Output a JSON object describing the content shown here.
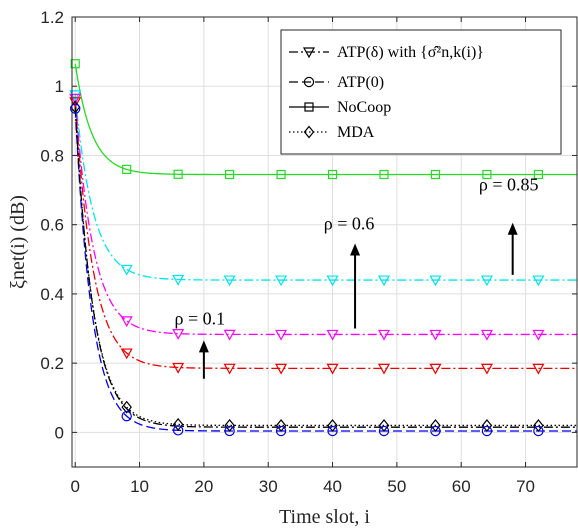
{
  "chart_data": {
    "type": "line",
    "xlabel": "Time slot, i",
    "ylabel": "ξnet(i) (dB)",
    "xlim": [
      -0.5,
      78
    ],
    "ylim": [
      -0.1,
      1.2
    ],
    "xticks": [
      "0",
      "10",
      "20",
      "30",
      "40",
      "50",
      "60",
      "70"
    ],
    "yticks": [
      "0",
      "0.2",
      "0.4",
      "0.6",
      "0.8",
      "1",
      "1.2"
    ],
    "grid": true,
    "legend": {
      "placement": "top-right",
      "entries": [
        {
          "label": "ATP(δ) with {σ̂²n,k(i)}",
          "style": "dashdot",
          "marker": "triangle-down"
        },
        {
          "label": "ATP(0)",
          "style": "dashed",
          "marker": "circle"
        },
        {
          "label": "NoCoop",
          "style": "solid",
          "marker": "square"
        },
        {
          "label": "MDA",
          "style": "dotted",
          "marker": "diamond"
        }
      ]
    },
    "annotations": [
      {
        "text": "ρ = 0.1",
        "arrow_x": 20,
        "arrow_from": 0.155,
        "arrow_to": 0.26
      },
      {
        "text": "ρ = 0.6",
        "arrow_x": 43.5,
        "arrow_from": 0.3,
        "arrow_to": 0.54
      },
      {
        "text": "ρ = 0.85",
        "arrow_x": 68,
        "arrow_from": 0.455,
        "arrow_to": 0.6
      }
    ],
    "marker_x": [
      0,
      8,
      16,
      24,
      32,
      40,
      48,
      56,
      64,
      72
    ],
    "series": [
      {
        "group": "NoCoop",
        "style": "solid",
        "marker": "square",
        "color": "#22dd22",
        "start": 1.065,
        "final": 0.745,
        "tau": 2.6
      },
      {
        "group": "ATP(δ)",
        "style": "dashdot",
        "marker": "triangle-down",
        "color": "#00e5ee",
        "start": 0.975,
        "final": 0.44,
        "tau": 2.8
      },
      {
        "group": "ATP(δ)",
        "style": "dashdot",
        "marker": "triangle-down",
        "color": "#ff00ff",
        "start": 0.965,
        "final": 0.283,
        "tau": 2.8
      },
      {
        "group": "ATP(δ)",
        "style": "dashdot",
        "marker": "triangle-down",
        "color": "#ee0000",
        "start": 0.955,
        "final": 0.185,
        "tau": 2.8
      },
      {
        "group": "MDA",
        "style": "dotted",
        "marker": "diamond",
        "color": "#000000",
        "start": 0.94,
        "final": 0.02,
        "tau": 2.8
      },
      {
        "group": "ATP(0)",
        "style": "dashed",
        "marker": "circle",
        "color": "#0000ee",
        "start": 0.935,
        "final": 0.004,
        "tau": 2.6
      },
      {
        "group": "ATP(δ) rho=0.1 curve",
        "style": "dashdot",
        "marker": "none",
        "color": "#000000",
        "start": 0.94,
        "final": 0.015,
        "tau": 2.8
      }
    ]
  }
}
